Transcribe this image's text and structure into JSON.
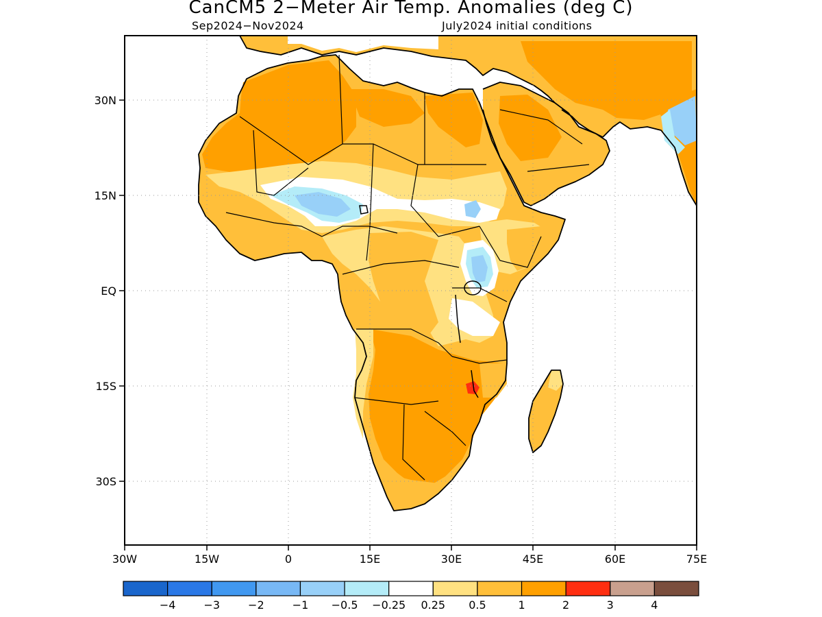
{
  "title": "CanCM5 2−Meter Air Temp. Anomalies (deg C)",
  "subtitle_left": "Sep2024−Nov2024",
  "subtitle_right": "July2024 initial conditions",
  "lat_labels": [
    "30N",
    "15N",
    "EQ",
    "15S",
    "30S"
  ],
  "lon_labels": [
    "30W",
    "15W",
    "0",
    "15E",
    "30E",
    "45E",
    "60E",
    "75E"
  ],
  "colorbar": {
    "colors": [
      "#1a66cc",
      "#2a78e6",
      "#4198f0",
      "#78b8f5",
      "#98d0f8",
      "#b4ecf8",
      "#ffffff",
      "#ffe181",
      "#ffbf3a",
      "#ffa000",
      "#ff2e10",
      "#c9a08e",
      "#7a4e3d"
    ],
    "labels": [
      "−4",
      "−3",
      "−2",
      "−1",
      "−0.5",
      "−0.25",
      "0.25",
      "0.5",
      "1",
      "2",
      "3",
      "4"
    ]
  },
  "colors": {
    "warm_1": "#ffe181",
    "warm_2": "#ffbf3a",
    "warm_3": "#ffa000",
    "hot": "#ff2e10",
    "cool_1": "#b4ecf8",
    "cool_2": "#98d0f8",
    "cool_3": "#78b8f5",
    "neutral": "#ffffff",
    "coastline": "#000000"
  }
}
